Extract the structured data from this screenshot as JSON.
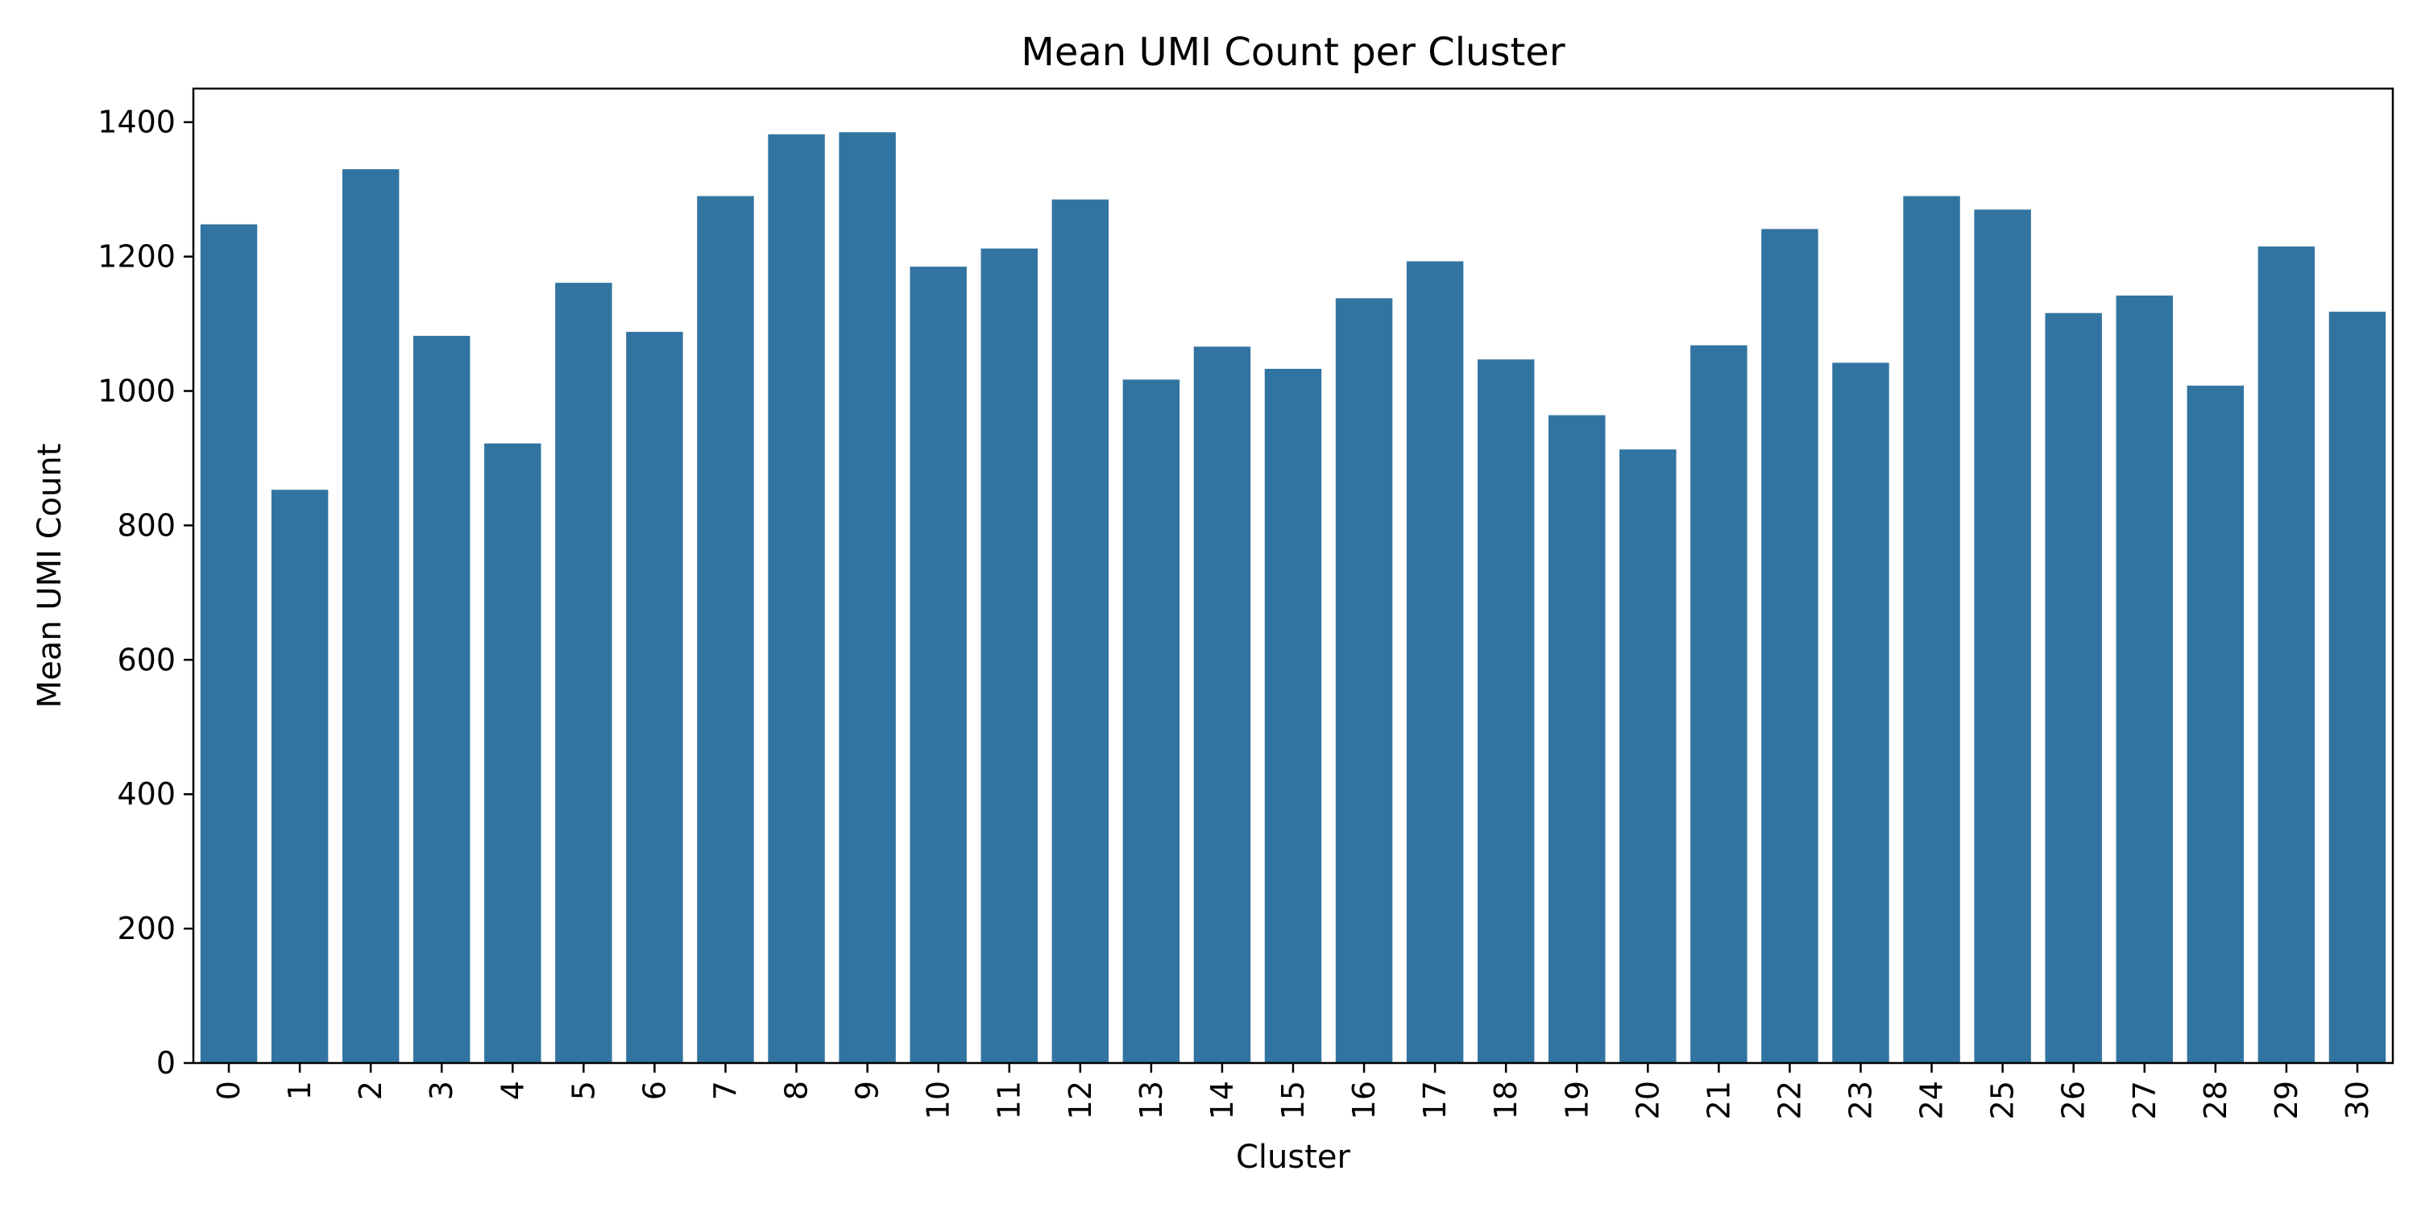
{
  "chart_data": {
    "type": "bar",
    "title": "Mean UMI Count per Cluster",
    "xlabel": "Cluster",
    "ylabel": "Mean UMI Count",
    "categories": [
      "0",
      "1",
      "2",
      "3",
      "4",
      "5",
      "6",
      "7",
      "8",
      "9",
      "10",
      "11",
      "12",
      "13",
      "14",
      "15",
      "16",
      "17",
      "18",
      "19",
      "20",
      "21",
      "22",
      "23",
      "24",
      "25",
      "26",
      "27",
      "28",
      "29",
      "30"
    ],
    "values": [
      1248,
      853,
      1330,
      1082,
      922,
      1161,
      1088,
      1290,
      1382,
      1385,
      1185,
      1212,
      1285,
      1017,
      1066,
      1033,
      1138,
      1193,
      1047,
      964,
      913,
      1068,
      1241,
      1042,
      1290,
      1270,
      1116,
      1142,
      1008,
      1215,
      1118
    ],
    "ylim": [
      0,
      1450
    ],
    "yticks": [
      0,
      200,
      400,
      600,
      800,
      1000,
      1200,
      1400
    ],
    "bar_color": "#3274a1",
    "grid": false,
    "legend": "none"
  }
}
